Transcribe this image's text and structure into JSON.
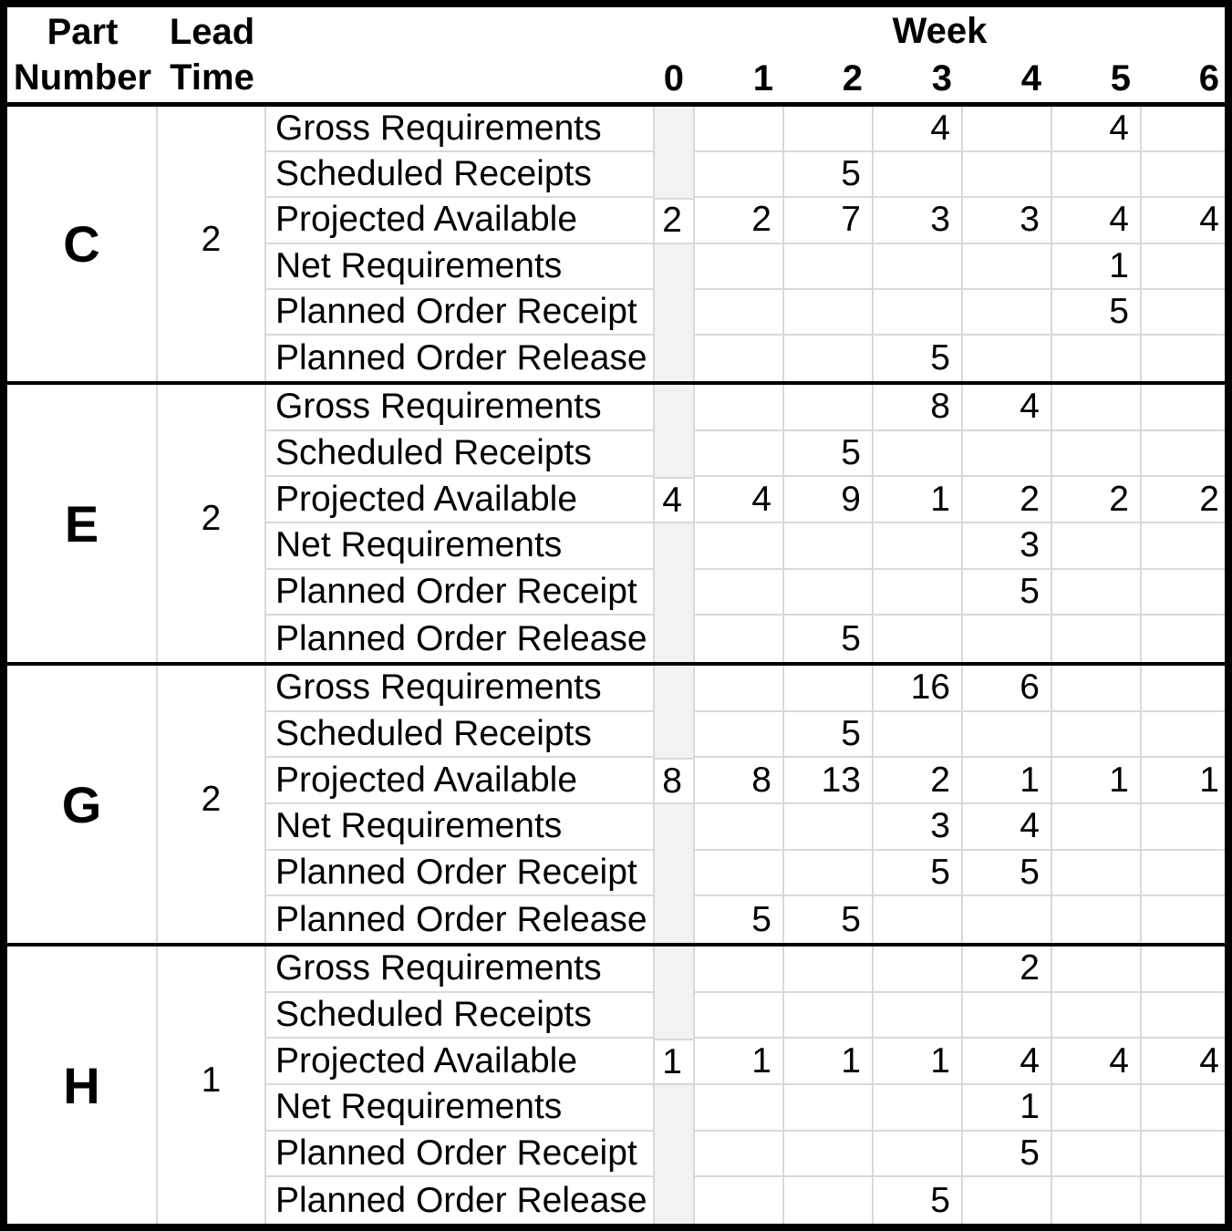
{
  "colors": {
    "text": "#000000",
    "border": "#000000",
    "grid_line": "#d9d9d9",
    "week0_shade": "#f2f2f2",
    "background": "#ffffff"
  },
  "header": {
    "part_col_line1": "Part",
    "part_col_line2": "Number",
    "lead_col_line1": "Lead",
    "lead_col_line2": "Time",
    "week_label": "Week",
    "weeks": [
      "0",
      "1",
      "2",
      "3",
      "4",
      "5",
      "6"
    ]
  },
  "row_labels": [
    "Gross Requirements",
    "Scheduled Receipts",
    "Projected Available",
    "Net Requirements",
    "Planned Order Receipt",
    "Planned Order Release"
  ],
  "parts": [
    {
      "name": "C",
      "lead_time": "2",
      "values": [
        [
          "",
          "",
          "",
          "4",
          "",
          "4",
          ""
        ],
        [
          "",
          "",
          "5",
          "",
          "",
          "",
          ""
        ],
        [
          "2",
          "2",
          "7",
          "3",
          "3",
          "4",
          "4"
        ],
        [
          "",
          "",
          "",
          "",
          "",
          "1",
          ""
        ],
        [
          "",
          "",
          "",
          "",
          "",
          "5",
          ""
        ],
        [
          "",
          "",
          "",
          "5",
          "",
          "",
          ""
        ]
      ]
    },
    {
      "name": "E",
      "lead_time": "2",
      "values": [
        [
          "",
          "",
          "",
          "8",
          "4",
          "",
          ""
        ],
        [
          "",
          "",
          "5",
          "",
          "",
          "",
          ""
        ],
        [
          "4",
          "4",
          "9",
          "1",
          "2",
          "2",
          "2"
        ],
        [
          "",
          "",
          "",
          "",
          "3",
          "",
          ""
        ],
        [
          "",
          "",
          "",
          "",
          "5",
          "",
          ""
        ],
        [
          "",
          "",
          "5",
          "",
          "",
          "",
          ""
        ]
      ]
    },
    {
      "name": "G",
      "lead_time": "2",
      "values": [
        [
          "",
          "",
          "",
          "16",
          "6",
          "",
          ""
        ],
        [
          "",
          "",
          "5",
          "",
          "",
          "",
          ""
        ],
        [
          "8",
          "8",
          "13",
          "2",
          "1",
          "1",
          "1"
        ],
        [
          "",
          "",
          "",
          "3",
          "4",
          "",
          ""
        ],
        [
          "",
          "",
          "",
          "5",
          "5",
          "",
          ""
        ],
        [
          "",
          "5",
          "5",
          "",
          "",
          "",
          ""
        ]
      ]
    },
    {
      "name": "H",
      "lead_time": "1",
      "values": [
        [
          "",
          "",
          "",
          "",
          "2",
          "",
          ""
        ],
        [
          "",
          "",
          "",
          "",
          "",
          "",
          ""
        ],
        [
          "1",
          "1",
          "1",
          "1",
          "4",
          "4",
          "4"
        ],
        [
          "",
          "",
          "",
          "",
          "1",
          "",
          ""
        ],
        [
          "",
          "",
          "",
          "",
          "5",
          "",
          ""
        ],
        [
          "",
          "",
          "",
          "5",
          "",
          "",
          ""
        ]
      ]
    }
  ]
}
